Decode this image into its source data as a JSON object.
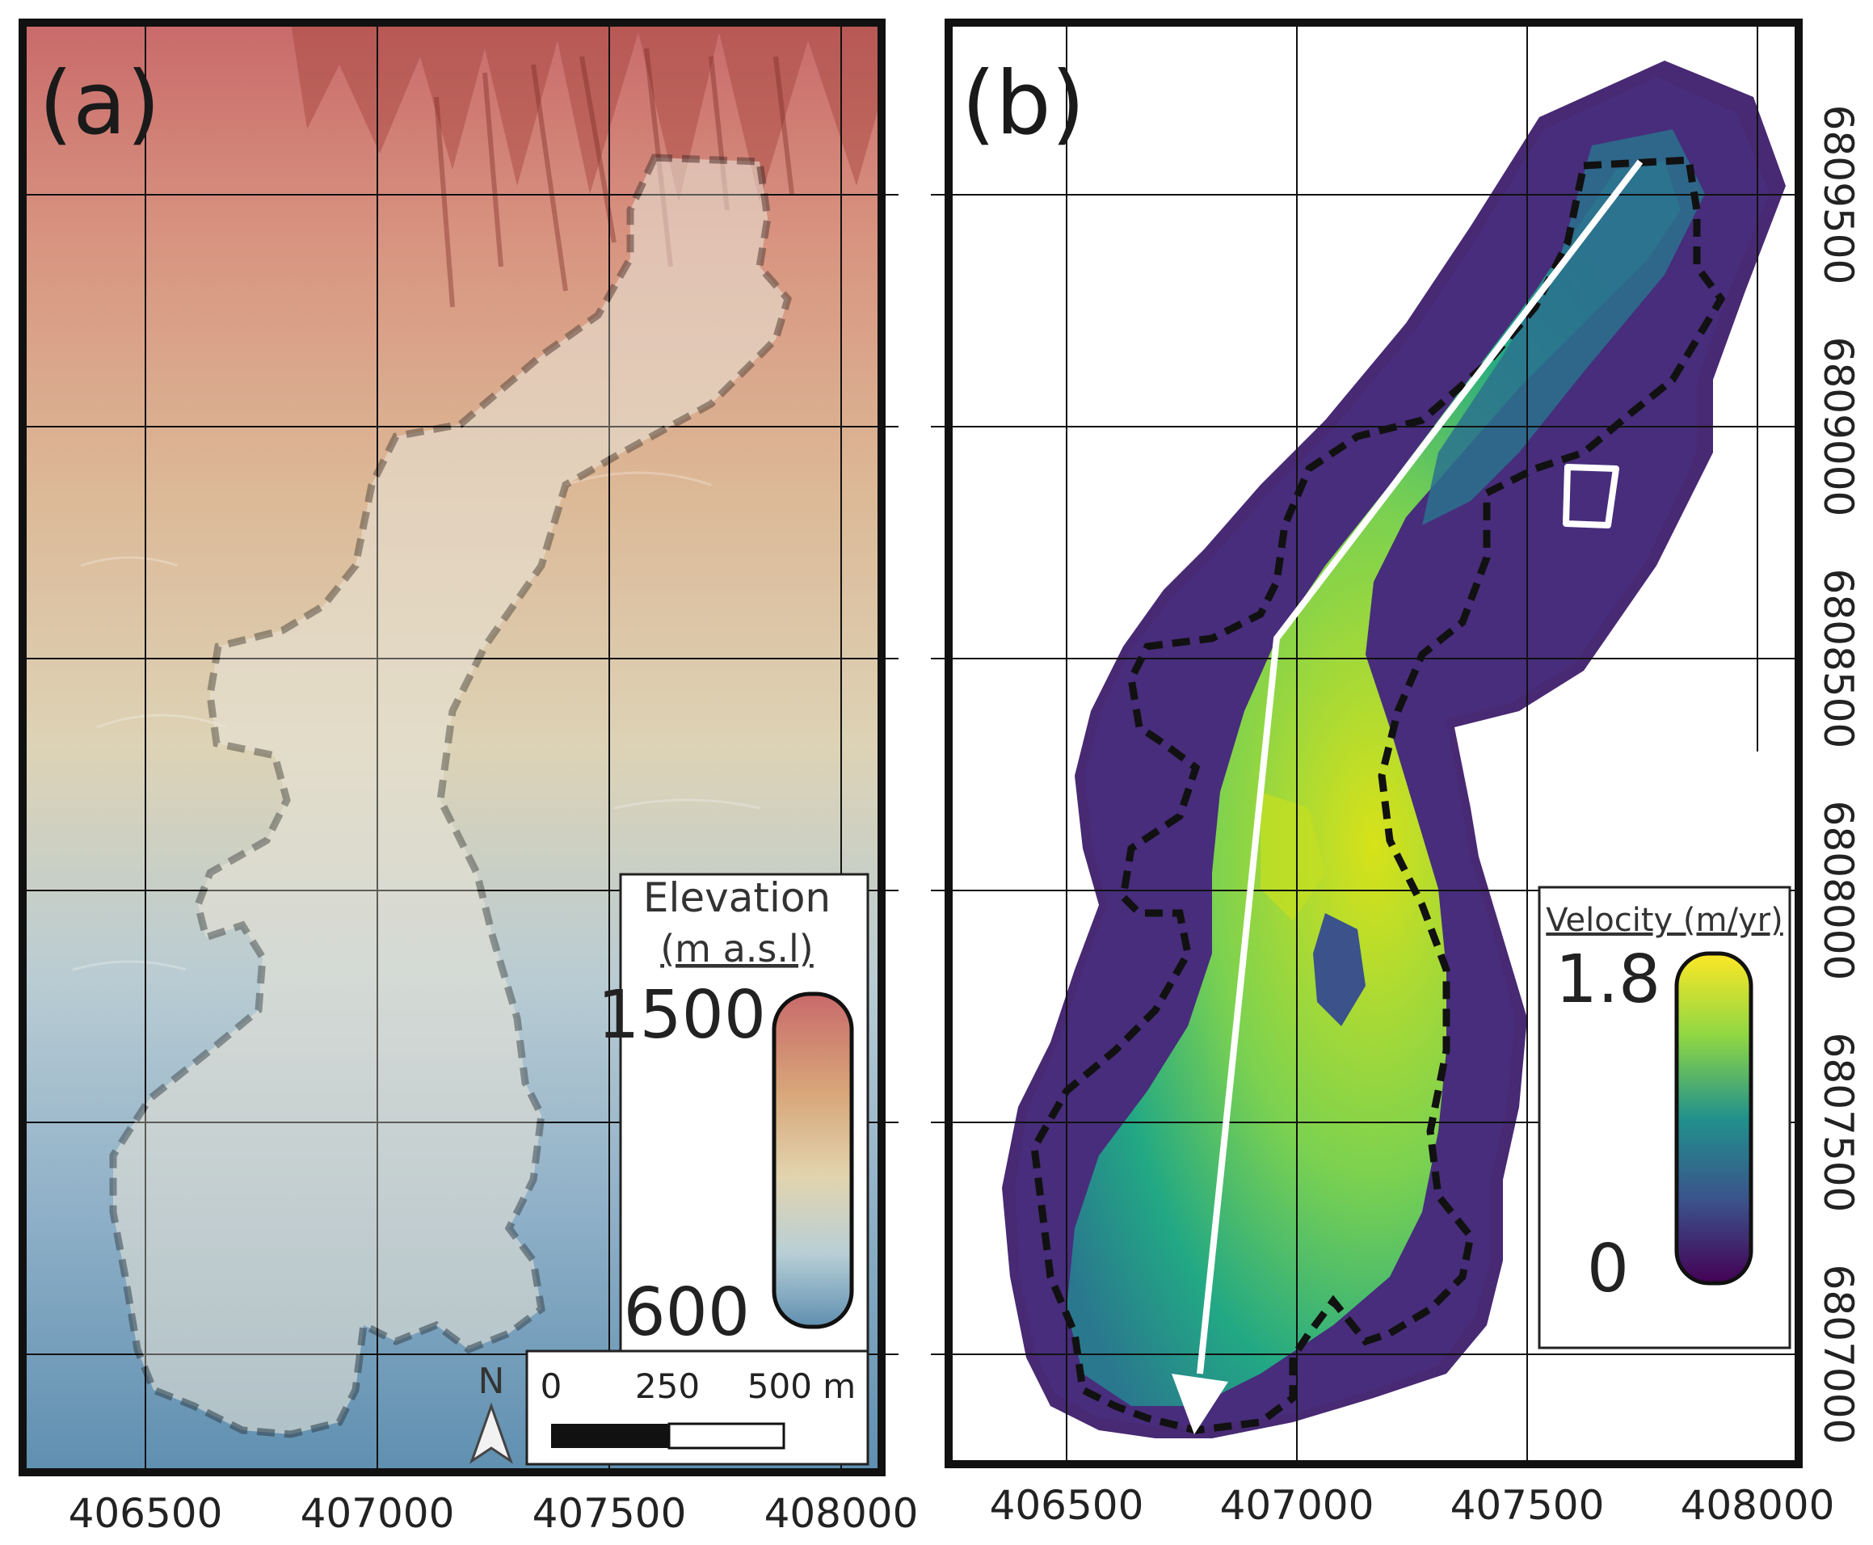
{
  "panels": {
    "a": {
      "label": "(a)",
      "legend": {
        "title": "Elevation",
        "units": "(m a.s.l)",
        "max_label": "1500",
        "min_label": "600",
        "max_value": 1500,
        "min_value": 600,
        "colors": [
          "#c96a6a",
          "#d8a77a",
          "#e2d4ae",
          "#b8cfd6",
          "#5f8fb0"
        ]
      },
      "scale_bar": {
        "labels": [
          "0",
          "250",
          "500 m"
        ]
      },
      "north_arrow": "N"
    },
    "b": {
      "label": "(b)",
      "legend": {
        "title": "Velocity (m/yr)",
        "max_label": "1.8",
        "min_label": "0",
        "max_value": 1.8,
        "min_value": 0,
        "colors": [
          "#fde725",
          "#5ec962",
          "#21918c",
          "#3b528b",
          "#440154"
        ]
      }
    }
  },
  "axes": {
    "x_ticks": [
      "406500",
      "407000",
      "407500",
      "408000"
    ],
    "y_ticks": [
      "6809500",
      "6809000",
      "6808500",
      "6808000",
      "6807500",
      "6807000"
    ]
  },
  "colors": {
    "outline": "#111111",
    "flow_arrow": "#ffffff"
  }
}
